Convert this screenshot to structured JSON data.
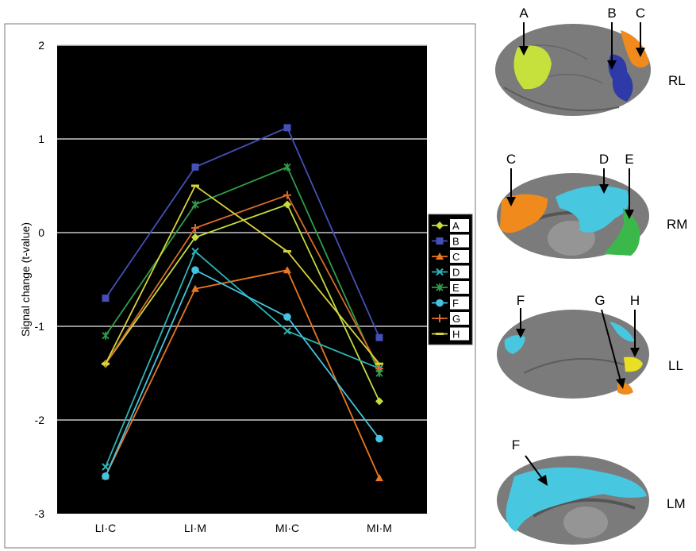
{
  "chart_data": {
    "type": "line",
    "xlabel": "",
    "ylabel": "Signal change (t-value)",
    "ylim": [
      -3,
      2
    ],
    "yticks": [
      2,
      1,
      0,
      -1,
      -2,
      -3
    ],
    "yticks_labels": [
      "2",
      "1",
      "0",
      "-1",
      "-2",
      "-3"
    ],
    "grid": true,
    "legend_placement": "right",
    "background": "#000000",
    "categories": [
      "LI·C",
      "LI·M",
      "MI·C",
      "MI·M"
    ],
    "series": [
      {
        "name": "A",
        "color": "#c6dc3c",
        "marker": "diamond",
        "values": [
          -1.4,
          -0.05,
          0.3,
          -1.8
        ]
      },
      {
        "name": "B",
        "color": "#4450b8",
        "marker": "square",
        "values": [
          -0.7,
          0.7,
          1.12,
          -1.12
        ]
      },
      {
        "name": "C",
        "color": "#e87722",
        "marker": "triangle",
        "values": [
          -2.6,
          -0.6,
          -0.4,
          -2.62
        ]
      },
      {
        "name": "D",
        "color": "#2cb5b5",
        "marker": "x",
        "values": [
          -2.5,
          -0.2,
          -1.05,
          -1.45
        ]
      },
      {
        "name": "E",
        "color": "#2e9e4a",
        "marker": "star",
        "values": [
          -1.1,
          0.3,
          0.7,
          -1.5
        ]
      },
      {
        "name": "F",
        "color": "#44c4e0",
        "marker": "circle",
        "values": [
          -2.6,
          -0.4,
          -0.9,
          -2.2
        ]
      },
      {
        "name": "G",
        "color": "#d86a2a",
        "marker": "plus",
        "values": [
          -1.4,
          0.05,
          0.4,
          -1.45
        ]
      },
      {
        "name": "H",
        "color": "#d8d43c",
        "marker": "dash",
        "values": [
          -1.4,
          0.5,
          -0.2,
          -1.4
        ]
      }
    ]
  },
  "brain_panels": [
    {
      "view": "RL",
      "labels": [
        "A",
        "B",
        "C"
      ],
      "colors": [
        "#c6e03c",
        "#2e3aa8",
        "#f08a1c"
      ]
    },
    {
      "view": "RM",
      "labels": [
        "C",
        "D",
        "E"
      ],
      "colors": [
        "#f08a1c",
        "#48c8e0",
        "#3cb84a"
      ]
    },
    {
      "view": "LL",
      "labels": [
        "F",
        "G",
        "H"
      ],
      "colors": [
        "#48c8e0",
        "#f08a1c",
        "#e8e020"
      ]
    },
    {
      "view": "LM",
      "labels": [
        "F"
      ],
      "colors": [
        "#48c8e0"
      ]
    }
  ]
}
